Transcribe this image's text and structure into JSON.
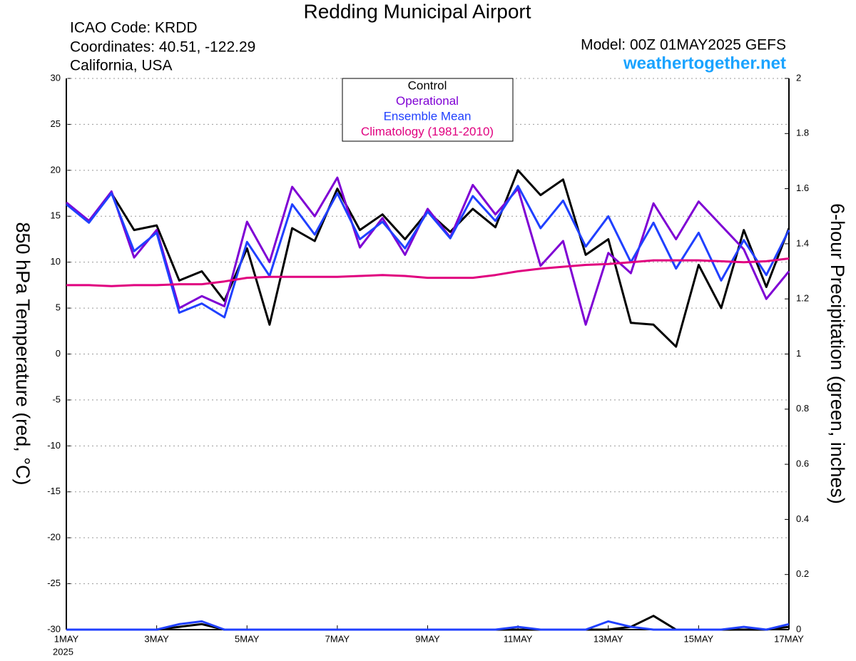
{
  "chart_data": {
    "type": "line",
    "title": "Redding Municipal Airport",
    "info": [
      "ICAO Code: KRDD",
      "Coordinates: 40.51, -122.29",
      "California, USA"
    ],
    "model": "Model: 00Z 01MAY2025 GEFS",
    "site": "weathertogether.net",
    "ylabel": "850 hPa Temperature (red, °C)",
    "y2label": "6-hour Precipitation (green, inches)",
    "x_year": "2025",
    "x": [
      1,
      1.5,
      2,
      2.5,
      3,
      3.5,
      4,
      4.5,
      5,
      5.5,
      6,
      6.5,
      7,
      7.5,
      8,
      8.5,
      9,
      9.5,
      10,
      10.5,
      11,
      11.5,
      12,
      12.5,
      13,
      13.5,
      14,
      14.5,
      15,
      15.5,
      16,
      16.5,
      17
    ],
    "xlim": [
      1,
      17
    ],
    "xticks": [
      {
        "value": 1,
        "label": "1MAY"
      },
      {
        "value": 3,
        "label": "3MAY"
      },
      {
        "value": 5,
        "label": "5MAY"
      },
      {
        "value": 7,
        "label": "7MAY"
      },
      {
        "value": 9,
        "label": "9MAY"
      },
      {
        "value": 11,
        "label": "11MAY"
      },
      {
        "value": 13,
        "label": "13MAY"
      },
      {
        "value": 15,
        "label": "15MAY"
      },
      {
        "value": 17,
        "label": "17MAY"
      }
    ],
    "ylim": [
      -30,
      30
    ],
    "yticks": [
      30,
      25,
      20,
      15,
      10,
      5,
      0,
      -5,
      -10,
      -15,
      -20,
      -25,
      -30
    ],
    "y2lim": [
      0,
      2
    ],
    "y2ticks": [
      2,
      1.8,
      1.6,
      1.4,
      1.2,
      1,
      0.8,
      0.6,
      0.4,
      0.2,
      0
    ],
    "grid": true,
    "series": [
      {
        "name": "Control",
        "color": "#000000",
        "values": [
          16.3,
          14.5,
          17.5,
          13.5,
          14,
          8,
          9,
          5.8,
          11.5,
          3.2,
          13.7,
          12.3,
          18,
          13.5,
          15.2,
          12.5,
          15.5,
          13.3,
          15.8,
          13.8,
          20,
          17.3,
          19,
          10.8,
          12.5,
          3.4,
          3.2,
          0.8,
          9.7,
          5,
          13.5,
          7.3,
          13.7
        ]
      },
      {
        "name": "Operational",
        "color": "#7f00d4",
        "values": [
          16.5,
          14.5,
          17.7,
          10.5,
          13.5,
          5,
          6.3,
          5.2,
          14.4,
          10,
          18.2,
          15,
          19.2,
          11.6,
          14.8,
          10.8,
          15.8,
          12.7,
          18.4,
          15.2,
          18,
          9.6,
          12.3,
          3.2,
          11,
          8.8,
          16.4,
          12.5,
          16.6,
          14,
          11.4,
          6,
          9
        ]
      },
      {
        "name": "Ensemble Mean",
        "color": "#2040ff",
        "values": [
          16.3,
          14.3,
          17.5,
          11.2,
          13.2,
          4.5,
          5.5,
          4,
          12.2,
          8.5,
          16.3,
          13,
          17.5,
          12.5,
          14.4,
          11.5,
          15.5,
          12.6,
          17.2,
          14.5,
          18.3,
          13.7,
          16.7,
          11.7,
          15,
          10,
          14.3,
          9.3,
          13.2,
          8,
          12.4,
          8.6,
          13.5
        ]
      },
      {
        "name": "Climatology (1981-2010)",
        "color": "#e0007f",
        "values": [
          7.5,
          7.5,
          7.4,
          7.5,
          7.5,
          7.6,
          7.6,
          7.9,
          8.3,
          8.4,
          8.4,
          8.4,
          8.4,
          8.5,
          8.6,
          8.5,
          8.3,
          8.3,
          8.3,
          8.6,
          9,
          9.3,
          9.5,
          9.7,
          9.8,
          10,
          10.2,
          10.2,
          10.2,
          10.1,
          10,
          10.1,
          10.4
        ]
      },
      {
        "color": "#000000",
        "axis": "y2",
        "values": [
          0,
          0,
          0,
          0,
          0,
          0.01,
          0.02,
          0,
          0,
          0,
          0,
          0,
          0,
          0,
          0,
          0,
          0,
          0,
          0,
          0,
          0,
          0,
          0,
          0,
          0,
          0.01,
          0.05,
          0,
          0,
          0,
          0,
          0,
          0.01
        ]
      },
      {
        "color": "#2040ff",
        "axis": "y2",
        "values": [
          0,
          0,
          0,
          0,
          0,
          0.02,
          0.03,
          0,
          0,
          0,
          0,
          0,
          0,
          0,
          0,
          0,
          0,
          0,
          0,
          0,
          0.01,
          0,
          0,
          0,
          0.03,
          0.01,
          0,
          0,
          0,
          0,
          0.01,
          0,
          0.02
        ]
      }
    ]
  }
}
